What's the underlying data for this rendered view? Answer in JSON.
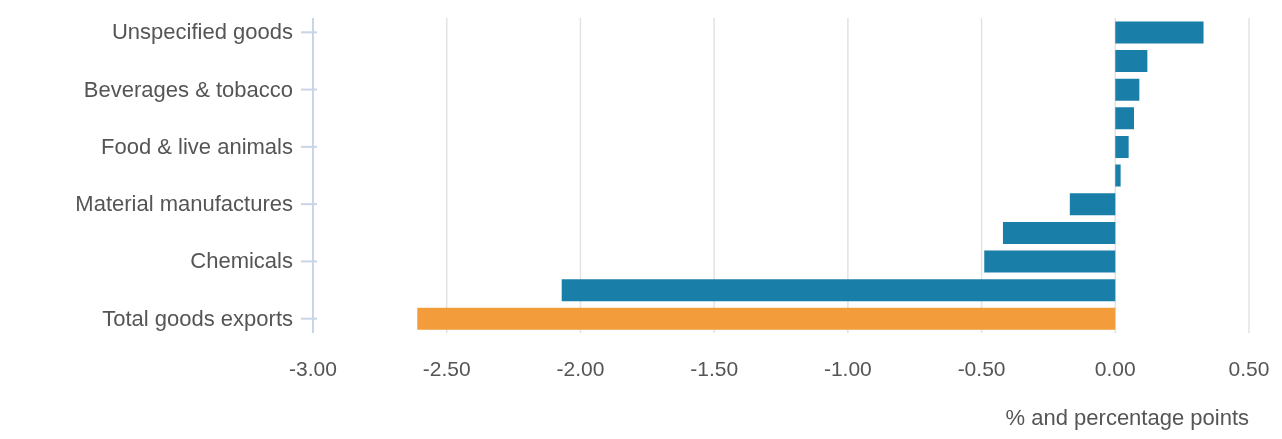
{
  "chart_data": {
    "type": "bar",
    "orientation": "horizontal",
    "xlabel": "% and percentage points",
    "categories": [
      "Unspecified goods",
      null,
      "Beverages & tobacco",
      null,
      "Food & live animals",
      null,
      "Material manufactures",
      null,
      "Chemicals",
      null,
      "Total goods exports"
    ],
    "values": [
      0.33,
      0.12,
      0.09,
      0.07,
      0.05,
      0.02,
      -0.17,
      -0.42,
      -0.49,
      -2.07,
      -2.61
    ],
    "colors": [
      "#1a7fa8",
      "#1a7fa8",
      "#1a7fa8",
      "#1a7fa8",
      "#1a7fa8",
      "#1a7fa8",
      "#1a7fa8",
      "#1a7fa8",
      "#1a7fa8",
      "#1a7fa8",
      "#f39c3c"
    ],
    "xlim": [
      -3,
      0.5
    ],
    "xticks": [
      {
        "value": -3,
        "label": "-3.00"
      },
      {
        "value": -2.5,
        "label": "-2.50"
      },
      {
        "value": -2,
        "label": "-2.00"
      },
      {
        "value": -1.5,
        "label": "-1.50"
      },
      {
        "value": -1,
        "label": "-1.00"
      },
      {
        "value": -0.5,
        "label": "-0.50"
      },
      {
        "value": 0,
        "label": "0.00"
      },
      {
        "value": 0.5,
        "label": "0.50"
      }
    ],
    "grid": "x"
  }
}
